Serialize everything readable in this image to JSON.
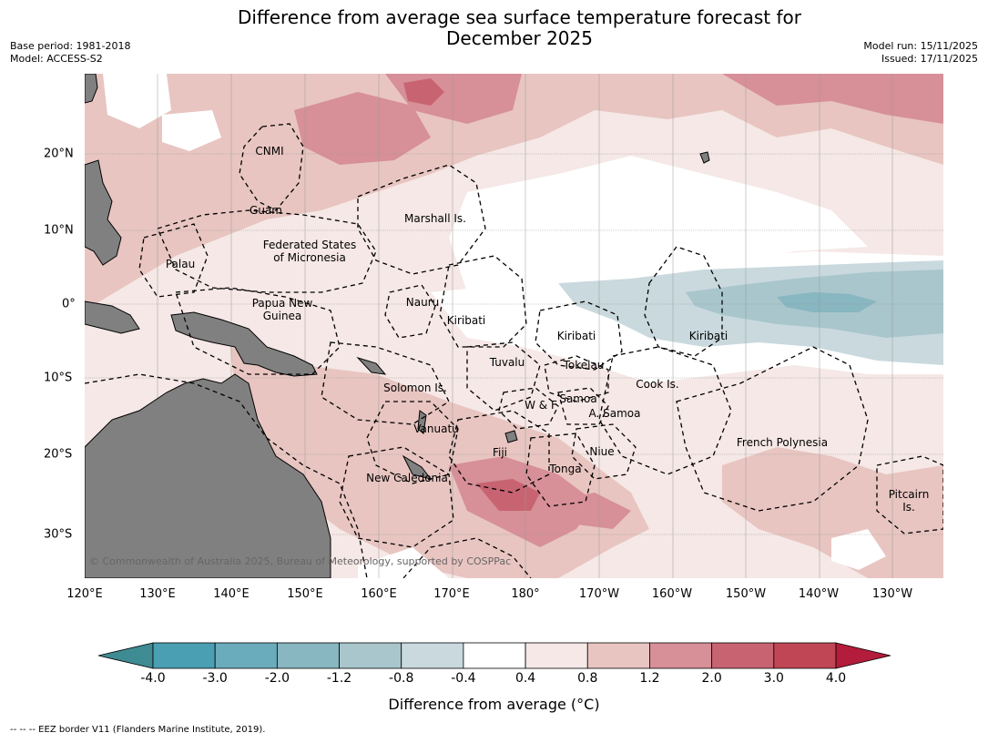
{
  "header": {
    "title_line1": "Difference from average sea surface temperature forecast for",
    "title_line2": "December 2025",
    "base_period": "Base period: 1981-2018",
    "model": "Model: ACCESS-S2",
    "model_run": "Model run: 15/11/2025",
    "issued": "Issued: 17/11/2025"
  },
  "map": {
    "lon_labels": [
      "120°E",
      "130°E",
      "140°E",
      "150°E",
      "160°E",
      "170°E",
      "180°",
      "170°W",
      "160°W",
      "150°W",
      "140°W",
      "130°W"
    ],
    "lat_labels": [
      "20°N",
      "10°N",
      "0°",
      "10°S",
      "20°S",
      "30°S"
    ],
    "land_color": "#808080",
    "regions": [
      "CNMI",
      "Guam",
      "Marshall Is.",
      "Federated States",
      "of Micronesia",
      "Palau",
      "Papua New",
      "Guinea",
      "Nauru",
      "Kiribati",
      "Kiribati",
      "Kiribati",
      "Tuvalu",
      "Tokelau",
      "Cook Is.",
      "Solomon Is.",
      "W & F",
      "Samoa",
      "A. Samoa",
      "Vanuatu",
      "Fiji",
      "Niue",
      "French Polynesia",
      "Tonga",
      "New Caledonia",
      "Pitcairn",
      "Is."
    ],
    "copyright": "© Commonwealth of Australia 2025, Bureau of Meteorology, supported by COSPPac"
  },
  "colorbar": {
    "label": "Difference from average (°C)",
    "ticks": [
      "-4.0",
      "-3.0",
      "-2.0",
      "-1.2",
      "-0.8",
      "-0.4",
      "0.4",
      "0.8",
      "1.2",
      "2.0",
      "3.0",
      "4.0"
    ],
    "colors": [
      "#3f8b94",
      "#4a9fb2",
      "#6aacbb",
      "#88b6c1",
      "#a8c6cc",
      "#c9d9de",
      "#ffffff",
      "#f5e8e6",
      "#e8c5c1",
      "#d78f98",
      "#c86472",
      "#c04656",
      "#b31c3a"
    ]
  },
  "footnote": "--  --  -- EEZ border V11 (Flanders Marine Institute, 2019)."
}
